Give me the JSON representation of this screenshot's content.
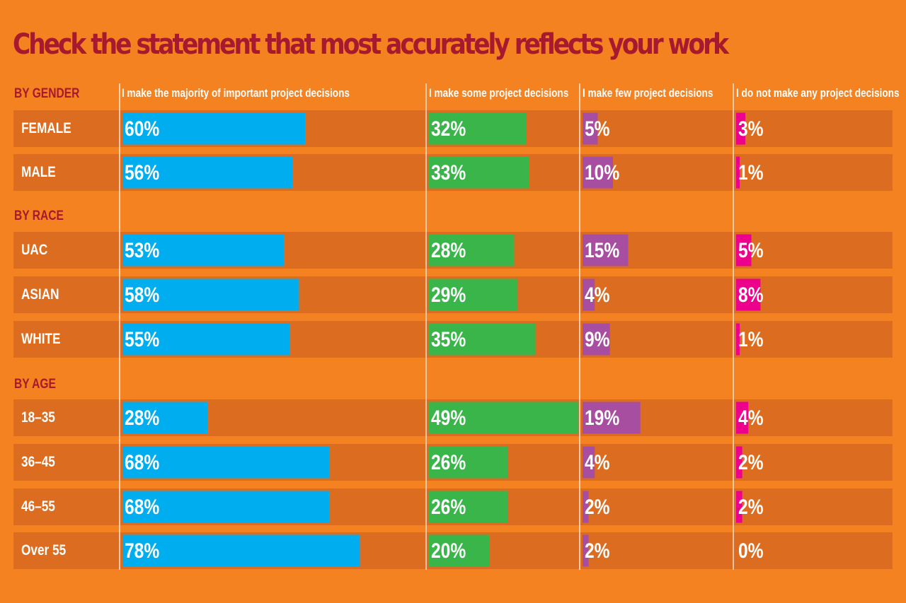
{
  "colors": {
    "background": "#f58220",
    "row_band": "#dc6d20",
    "title": "#a6192e",
    "group_label": "#a6192e",
    "text": "#ffffff",
    "divider": "#ffffff",
    "series": [
      "#00aeef",
      "#39b54a",
      "#a84ea0",
      "#ec008c"
    ]
  },
  "chart_data": {
    "type": "bar",
    "title": "Check the statement that most accurately reflects your work",
    "series": [
      {
        "name": "I make the majority of important  project decisions",
        "values": [
          60,
          56,
          53,
          58,
          55,
          28,
          68,
          68,
          78
        ]
      },
      {
        "name": "I make some project decisions",
        "values": [
          32,
          33,
          28,
          29,
          35,
          49,
          26,
          26,
          20
        ]
      },
      {
        "name": "I make few project decisions",
        "values": [
          5,
          10,
          15,
          4,
          9,
          19,
          4,
          2,
          2
        ]
      },
      {
        "name": "I do not make any project decisions",
        "values": [
          3,
          1,
          5,
          8,
          1,
          4,
          2,
          2,
          0
        ]
      }
    ],
    "groups": [
      {
        "label": "BY GENDER",
        "rows": [
          "FEMALE",
          "MALE"
        ]
      },
      {
        "label": "BY RACE",
        "rows": [
          "UAC",
          "ASIAN",
          "WHITE"
        ]
      },
      {
        "label": "BY AGE",
        "rows": [
          "18–35",
          "36–45",
          "46–55",
          "Over 55"
        ]
      }
    ],
    "value_suffix": "%",
    "grid": false,
    "legend": "column headers"
  }
}
